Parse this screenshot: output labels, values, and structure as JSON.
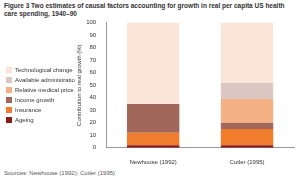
{
  "chart_data": {
    "type": "bar",
    "stacked": true,
    "title": "Figure 3  Two estimates of causal factors accounting for growth in real per capita US health care spending, 1940–90",
    "y_label": "Contribution to real growth (%)",
    "source": "Sources: Newhouse (1992); Cutler (1995)",
    "categories": [
      "Newhouse (1992)",
      "Cutler (1995)"
    ],
    "series": [
      {
        "name": "Ageing",
        "color": "#8b1a1a",
        "values": [
          2,
          2
        ]
      },
      {
        "name": "Insurance",
        "color": "#f07c2d",
        "values": [
          10,
          13
        ]
      },
      {
        "name": "Income growth",
        "color": "#a0675a",
        "values": [
          23,
          5
        ]
      },
      {
        "name": "Relative medical price inflation",
        "color": "#f4b183",
        "values": [
          0,
          19
        ]
      },
      {
        "name": "Available administration expenses",
        "color": "#dcc7c2",
        "values": [
          0,
          13
        ]
      },
      {
        "name": "Technological change",
        "color": "#fbe5d8",
        "values": [
          65,
          48
        ]
      }
    ],
    "ylim": [
      0,
      100
    ],
    "yticks": [
      0,
      10,
      20,
      30,
      40,
      50,
      60,
      70,
      80,
      90,
      100
    ],
    "grid": false,
    "legend": "left"
  }
}
